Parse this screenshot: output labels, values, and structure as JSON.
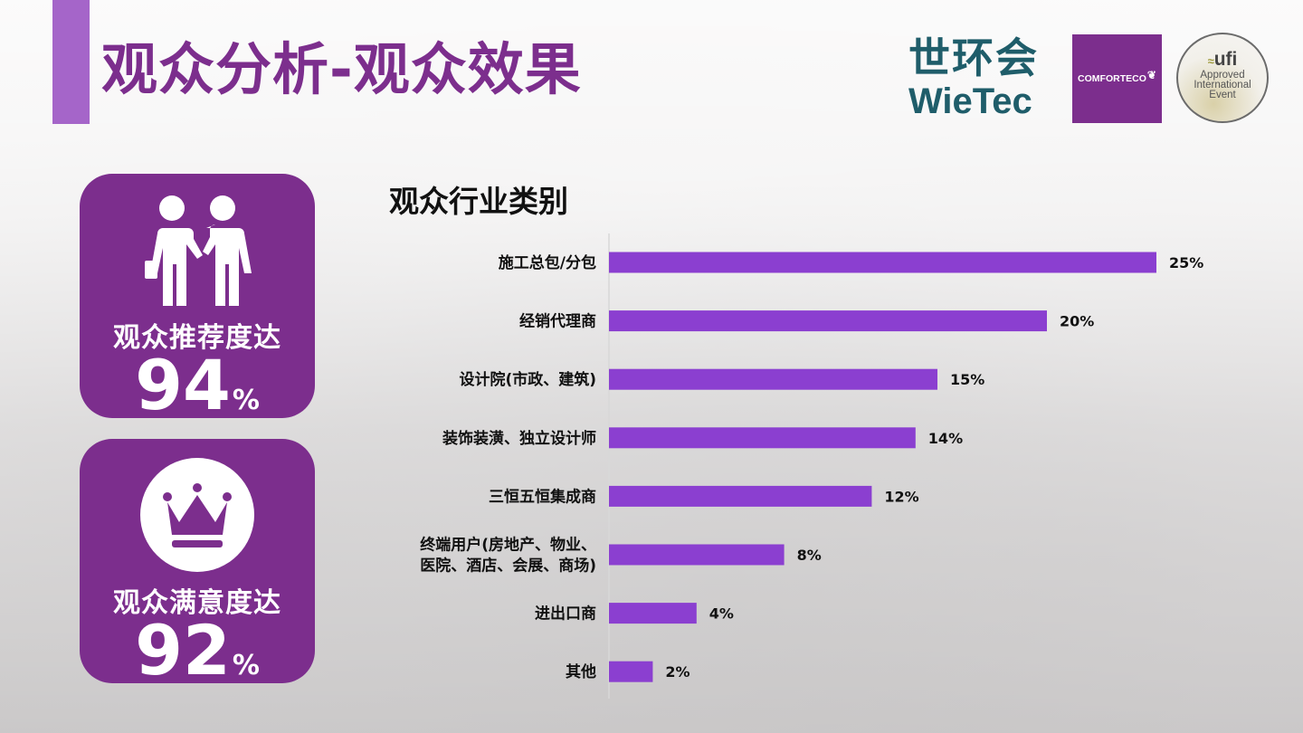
{
  "slide": {
    "title": "观众分析-观众效果"
  },
  "logos": {
    "wietec_cn": "世环会",
    "wietec_en": "WieTec",
    "comforteco": "COMFORTECO",
    "ufi_brand": "ufi",
    "ufi_line1": "Approved",
    "ufi_line2": "International",
    "ufi_line3": "Event"
  },
  "kpis": [
    {
      "label": "观众推荐度达",
      "value": "94",
      "unit": "%",
      "icon": "handshake-people-icon"
    },
    {
      "label": "观众满意度达",
      "value": "92",
      "unit": "%",
      "icon": "crown-icon"
    }
  ],
  "colors": {
    "brand_purple": "#7c2e8d",
    "bar_purple": "#8b3fd0",
    "accent_bar": "#a565c9"
  },
  "chart_data": {
    "type": "bar",
    "orientation": "horizontal",
    "title": "观众行业类别",
    "categories": [
      [
        "施工总包/分包"
      ],
      [
        "经销代理商"
      ],
      [
        "设计院(市政、建筑)"
      ],
      [
        "装饰装潢、独立设计师"
      ],
      [
        "三恒五恒集成商"
      ],
      [
        "终端用户(房地产、物业、",
        "医院、酒店、会展、商场)"
      ],
      [
        "进出口商"
      ],
      [
        "其他"
      ]
    ],
    "values": [
      25,
      20,
      15,
      14,
      12,
      8,
      4,
      2
    ],
    "value_labels": [
      "25%",
      "20%",
      "15%",
      "14%",
      "12%",
      "8%",
      "4%",
      "2%"
    ],
    "unit": "%",
    "xlim": [
      0,
      25
    ],
    "grid": false,
    "legend": "none"
  }
}
